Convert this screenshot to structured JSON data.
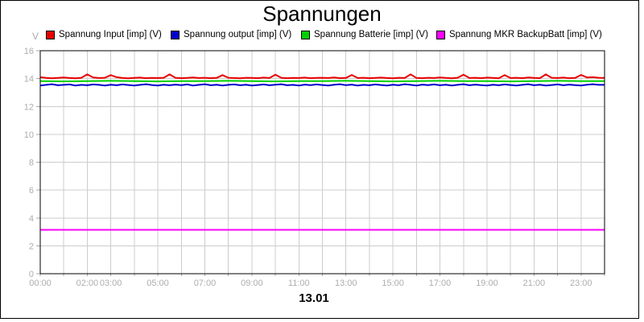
{
  "title": "Spannungen",
  "unit_label": "V",
  "date_label": "13.01",
  "legend": [
    {
      "label": "Spannung Input [imp] (V)",
      "color": "#e80000"
    },
    {
      "label": "Spannung output [imp] (V)",
      "color": "#0000cc"
    },
    {
      "label": "Spannung Batterie [imp] (V)",
      "color": "#00d000"
    },
    {
      "label": "Spannung MKR BackupBatt [imp] (V)",
      "color": "#ff00ff"
    }
  ],
  "chart_data": {
    "type": "line",
    "title": "Spannungen",
    "ylabel": "V",
    "xlabel": "13.01",
    "ylim": [
      0,
      16
    ],
    "y_tick_step": 2,
    "y_tick_labels": [
      "0",
      "2",
      "4",
      "6",
      "8",
      "10",
      "12",
      "14",
      "16"
    ],
    "x_range": [
      0,
      24
    ],
    "x_unit": "hours",
    "x_tick_hours": [
      0,
      2,
      3,
      5,
      7,
      9,
      11,
      13,
      15,
      17,
      19,
      21,
      23
    ],
    "x_tick_labels": [
      "00:00",
      "02:00",
      "03:00",
      "05:00",
      "07:00",
      "09:00",
      "11:00",
      "13:00",
      "15:00",
      "17:00",
      "19:00",
      "21:00",
      "23:00"
    ],
    "grid": true,
    "legend_position": "top",
    "series": [
      {
        "name": "Spannung Input [imp] (V)",
        "color": "#e80000",
        "approx_level": 14.05,
        "values": [
          14.1,
          14.05,
          14.02,
          14.05,
          14.08,
          14.04,
          14.02,
          14.06,
          14.3,
          14.08,
          14.04,
          14.06,
          14.25,
          14.1,
          14.04,
          14.02,
          14.05,
          14.07,
          14.03,
          14.05,
          14.04,
          14.06,
          14.3,
          14.06,
          14.03,
          14.05,
          14.08,
          14.04,
          14.06,
          14.03,
          14.05,
          14.25,
          14.06,
          14.04,
          14.02,
          14.06,
          14.05,
          14.03,
          14.07,
          14.04,
          14.28,
          14.06,
          14.03,
          14.05,
          14.04,
          14.07,
          14.03,
          14.05,
          14.06,
          14.04,
          14.08,
          14.03,
          14.05,
          14.26,
          14.04,
          14.06,
          14.03,
          14.05,
          14.07,
          14.04,
          14.02,
          14.06,
          14.04,
          14.3,
          14.05,
          14.03,
          14.06,
          14.04,
          14.08,
          14.05,
          14.02,
          14.06,
          14.28,
          14.04,
          14.06,
          14.03,
          14.07,
          14.05,
          14.02,
          14.25,
          14.04,
          14.06,
          14.03,
          14.08,
          14.05,
          14.03,
          14.3,
          14.06,
          14.04,
          14.07,
          14.03,
          14.05,
          14.26,
          14.08,
          14.1,
          14.06,
          14.05
        ]
      },
      {
        "name": "Spannung output [imp] (V)",
        "color": "#0000cc",
        "approx_level": 13.55,
        "values": [
          13.5,
          13.55,
          13.6,
          13.52,
          13.55,
          13.58,
          13.5,
          13.55,
          13.52,
          13.58,
          13.55,
          13.5,
          13.56,
          13.52,
          13.58,
          13.54,
          13.5,
          13.55,
          13.6,
          13.54,
          13.5,
          13.56,
          13.52,
          13.57,
          13.53,
          13.58,
          13.5,
          13.55,
          13.6,
          13.52,
          13.56,
          13.5,
          13.55,
          13.58,
          13.52,
          13.56,
          13.5,
          13.54,
          13.58,
          13.52,
          13.56,
          13.6,
          13.52,
          13.55,
          13.5,
          13.57,
          13.53,
          13.58,
          13.54,
          13.5,
          13.56,
          13.6,
          13.53,
          13.57,
          13.5,
          13.55,
          13.52,
          13.58,
          13.54,
          13.5,
          13.56,
          13.52,
          13.6,
          13.55,
          13.5,
          13.57,
          13.53,
          13.58,
          13.52,
          13.56,
          13.5,
          13.55,
          13.6,
          13.52,
          13.57,
          13.53,
          13.5,
          13.56,
          13.52,
          13.58,
          13.54,
          13.5,
          13.55,
          13.6,
          13.52,
          13.56,
          13.5,
          13.54,
          13.58,
          13.52,
          13.57,
          13.53,
          13.5,
          13.56,
          13.6,
          13.55,
          13.55
        ]
      },
      {
        "name": "Spannung Batterie [imp] (V)",
        "color": "#00d000",
        "approx_level": 13.82,
        "values": [
          13.82,
          13.8,
          13.82,
          13.84,
          13.82,
          13.8,
          13.82,
          13.82,
          13.84,
          13.82,
          13.8,
          13.82,
          13.82,
          13.84,
          13.82,
          13.8,
          13.82,
          13.84,
          13.82,
          13.82,
          13.8,
          13.82,
          13.84,
          13.82,
          13.82
        ]
      },
      {
        "name": "Spannung MKR BackupBatt [imp] (V)",
        "color": "#ff00ff",
        "approx_level": 3.15,
        "values": [
          3.15,
          3.15,
          3.15,
          3.15,
          3.15,
          3.15,
          3.15,
          3.15,
          3.15,
          3.15,
          3.15,
          3.15,
          3.15,
          3.15,
          3.15,
          3.15,
          3.15,
          3.15,
          3.15,
          3.15,
          3.15,
          3.15,
          3.15,
          3.15,
          3.15
        ]
      }
    ]
  }
}
